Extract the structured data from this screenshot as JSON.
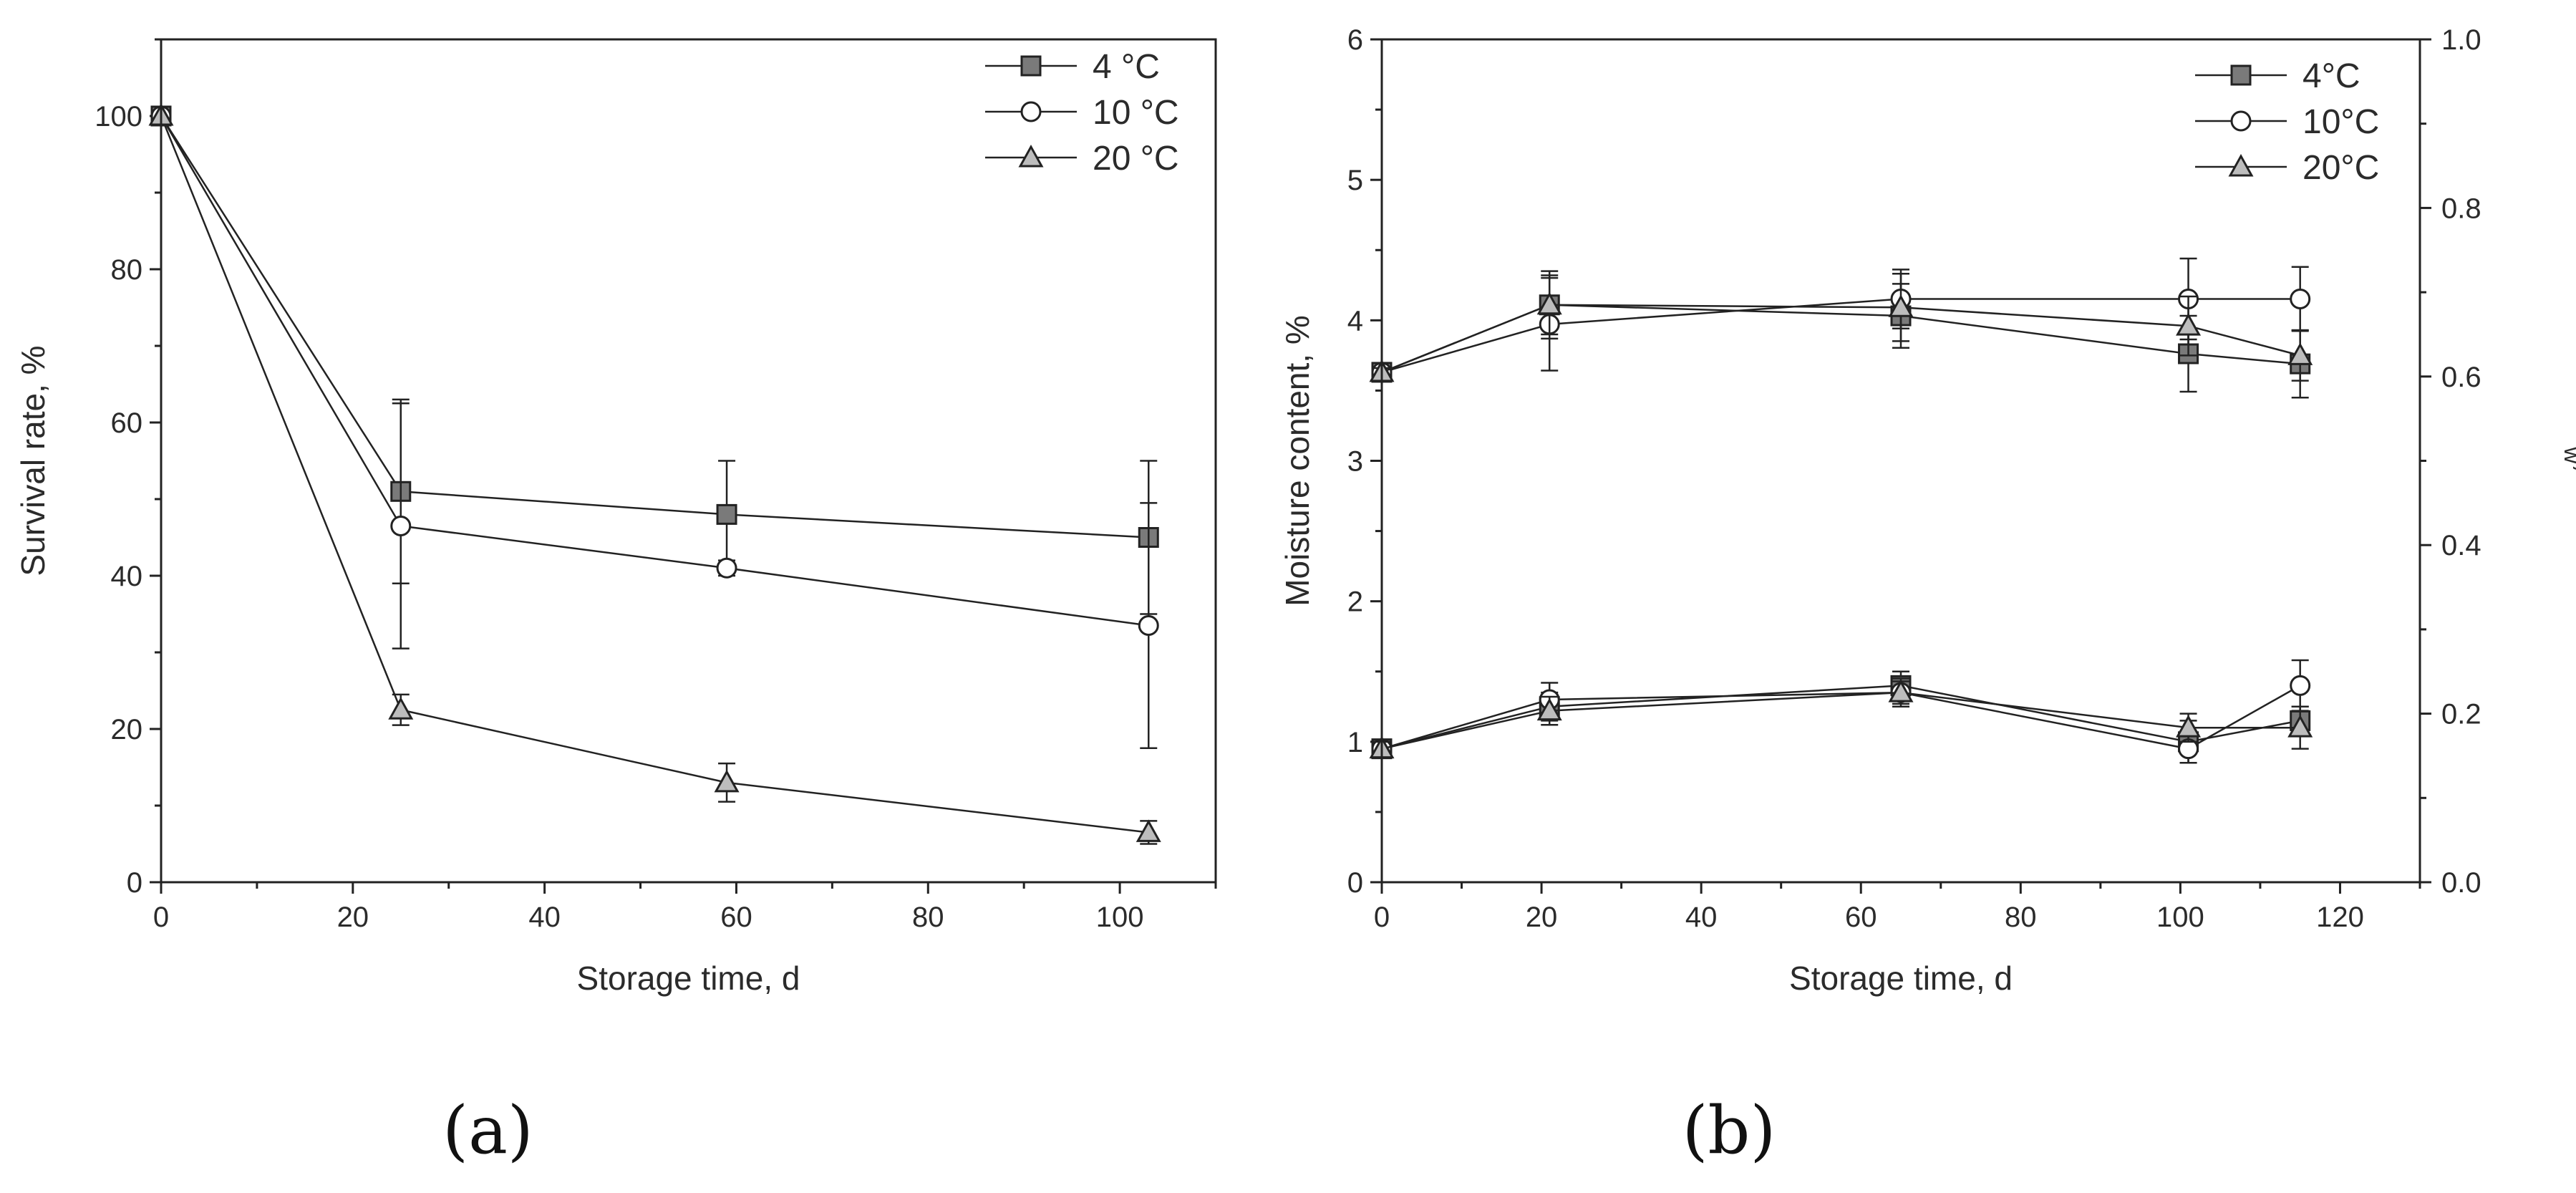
{
  "panels": [
    {
      "label": "(a)",
      "chart_data": {
        "type": "line",
        "xlabel": "Storage time, d",
        "ylabel": "Survival rate, %",
        "xlim": [
          0,
          110
        ],
        "ylim": [
          0,
          110
        ],
        "xticks": [
          0,
          20,
          40,
          60,
          80,
          100
        ],
        "yticks": [
          0,
          20,
          40,
          60,
          80,
          100
        ],
        "legend_position": "top-right",
        "series": [
          {
            "name": "4 °C",
            "marker": "square",
            "x": [
              0,
              25,
              59,
              103
            ],
            "y": [
              100,
              51,
              48,
              45
            ],
            "err": [
              0,
              12,
              7,
              10
            ]
          },
          {
            "name": "10 °C",
            "marker": "circle",
            "x": [
              0,
              25,
              59,
              103
            ],
            "y": [
              100,
              46.5,
              41,
              33.5
            ],
            "err": [
              0,
              16,
              1,
              16
            ]
          },
          {
            "name": "20 °C",
            "marker": "triangle",
            "x": [
              0,
              25,
              59,
              103
            ],
            "y": [
              100,
              22.5,
              13,
              6.5
            ],
            "err": [
              0,
              2,
              2.5,
              1.5
            ]
          }
        ]
      }
    },
    {
      "label": "(b)",
      "chart_data": {
        "type": "line",
        "xlabel": "Storage time, d",
        "ylabel": "Moisture content, %",
        "y2label_base": "a",
        "y2label_sub": "w",
        "y2label_suffix": ", -",
        "xlim": [
          0,
          130
        ],
        "ylim": [
          0,
          6
        ],
        "y2lim": [
          0,
          1.0
        ],
        "xticks": [
          0,
          20,
          40,
          60,
          80,
          100,
          120
        ],
        "yticks": [
          0,
          1,
          2,
          3,
          4,
          5,
          6
        ],
        "y2ticks": [
          "0.0",
          "0.2",
          "0.4",
          "0.6",
          "0.8",
          "1.0"
        ],
        "legend_position": "top-right",
        "series": [
          {
            "name": "4°C",
            "marker": "square",
            "x": [
              0,
              21,
              65,
              101,
              115
            ],
            "y": [
              0.95,
              1.25,
              1.4,
              1.0,
              1.15
            ],
            "err": [
              0.05,
              0.1,
              0.1,
              0.15,
              0.1
            ]
          },
          {
            "name": "10°C",
            "marker": "circle",
            "x": [
              0,
              21,
              65,
              101,
              115
            ],
            "y": [
              0.95,
              1.3,
              1.35,
              0.95,
              1.4
            ],
            "err": [
              0.05,
              0.12,
              0.08,
              0.1,
              0.18
            ]
          },
          {
            "name": "20°C",
            "marker": "triangle",
            "x": [
              0,
              21,
              65,
              101,
              115
            ],
            "y": [
              0.95,
              1.22,
              1.35,
              1.1,
              1.1
            ],
            "err": [
              0.05,
              0.1,
              0.1,
              0.1,
              0.15
            ]
          },
          {
            "name": "4°C aw",
            "legend": false,
            "marker": "square",
            "axis": "y2",
            "x": [
              0,
              21,
              65,
              101,
              115
            ],
            "y": [
              0.605,
              0.685,
              0.672,
              0.627,
              0.615
            ],
            "err": [
              0.005,
              0.035,
              0.038,
              0.045,
              0.04
            ]
          },
          {
            "name": "10°C aw",
            "legend": false,
            "marker": "circle",
            "axis": "y2",
            "x": [
              0,
              21,
              65,
              101,
              115
            ],
            "y": [
              0.605,
              0.662,
              0.692,
              0.692,
              0.692
            ],
            "err": [
              0.005,
              0.055,
              0.035,
              0.048,
              0.038
            ]
          },
          {
            "name": "20°C aw",
            "legend": false,
            "marker": "triangle",
            "axis": "y2",
            "x": [
              0,
              21,
              65,
              101,
              115
            ],
            "y": [
              0.605,
              0.685,
              0.682,
              0.66,
              0.625
            ],
            "err": [
              0.005,
              0.04,
              0.04,
              0.035,
              0.03
            ]
          }
        ]
      }
    }
  ]
}
